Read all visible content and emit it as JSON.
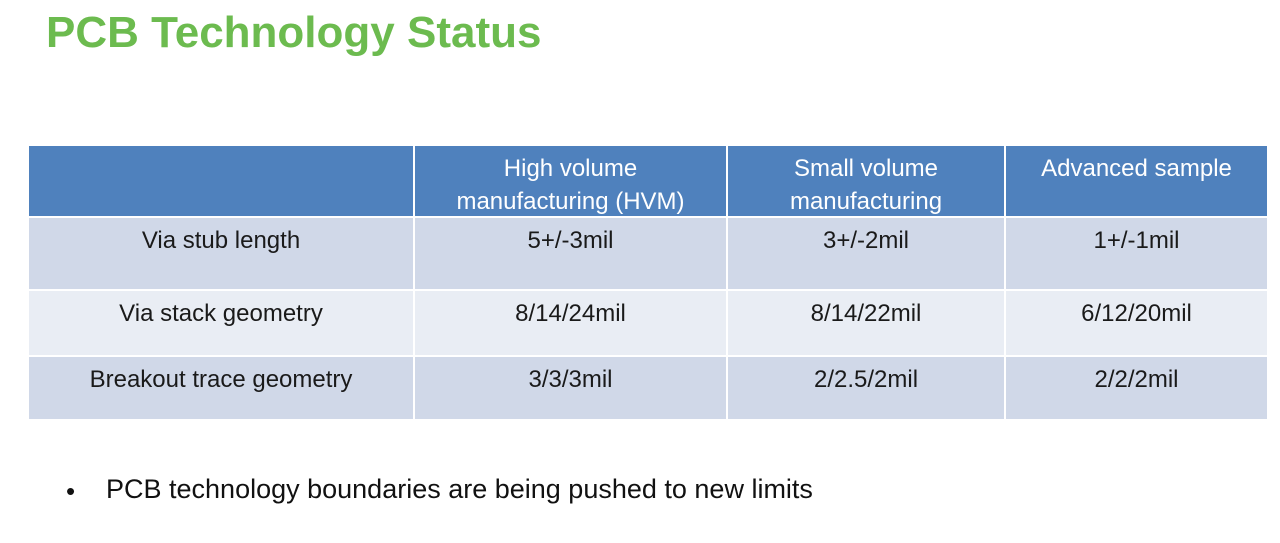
{
  "header": {
    "title": "PCB Technology Status"
  },
  "table": {
    "columns": [
      "High volume manufacturing (HVM)",
      "Small volume manufacturing",
      "Advanced sample"
    ],
    "rows": [
      [
        "Via stub length",
        "5+/-3mil",
        "3+/-2mil",
        "1+/-1mil"
      ],
      [
        "Via stack geometry",
        "8/14/24mil",
        "8/14/22mil",
        "6/12/20mil"
      ],
      [
        "Breakout trace geometry",
        "3/3/3mil",
        "2/2.5/2mil",
        "2/2/2mil"
      ]
    ]
  },
  "bullets": [
    "PCB technology boundaries are being pushed to new limits"
  ]
}
